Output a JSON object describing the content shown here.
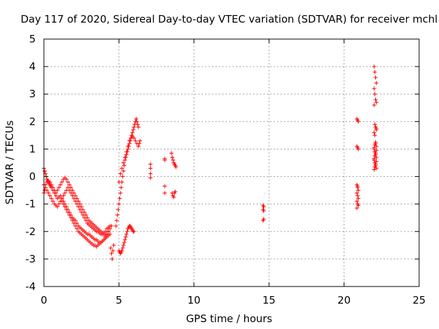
{
  "chart_data": {
    "type": "scatter",
    "title": "Day 117 of 2020, Sidereal Day-to-day VTEC variation (SDTVAR) for receiver mchl",
    "xlabel": "GPS time / hours",
    "ylabel": "SDTVAR / TECUs",
    "xlim": [
      0,
      25
    ],
    "ylim": [
      -4,
      5
    ],
    "xticks": [
      "0",
      "5",
      "10",
      "15",
      "20",
      "25"
    ],
    "yticks": [
      "-4",
      "-3",
      "-2",
      "-1",
      "0",
      "1",
      "2",
      "3",
      "4",
      "5"
    ],
    "grid": true,
    "marker": "plus",
    "color": "#ff0000",
    "series": [
      {
        "name": "SDTVAR",
        "x": [
          0.0,
          0.05,
          0.1,
          0.15,
          0.2,
          0.25,
          0.3,
          0.35,
          0.4,
          0.45,
          0.5,
          0.6,
          0.7,
          0.8,
          0.9,
          1.0,
          1.1,
          1.2,
          1.3,
          1.4,
          1.5,
          1.6,
          1.7,
          1.8,
          1.9,
          2.0,
          2.1,
          2.2,
          2.3,
          2.4,
          2.5,
          2.6,
          2.7,
          2.8,
          2.9,
          3.0,
          3.1,
          3.2,
          3.3,
          3.4,
          3.5,
          3.6,
          3.7,
          3.8,
          3.9,
          4.0,
          4.1,
          4.2,
          4.3,
          4.4,
          0.0,
          0.1,
          0.2,
          0.3,
          0.4,
          0.5,
          0.6,
          0.7,
          0.8,
          0.9,
          1.0,
          1.1,
          1.2,
          1.3,
          1.4,
          1.5,
          1.6,
          1.7,
          1.8,
          1.9,
          2.0,
          2.1,
          2.2,
          2.3,
          2.4,
          2.5,
          2.6,
          2.7,
          2.8,
          2.9,
          3.0,
          3.1,
          3.2,
          3.3,
          3.4,
          3.5,
          3.6,
          3.7,
          3.8,
          3.9,
          4.0,
          4.1,
          4.2,
          4.3,
          4.4,
          4.5,
          0.0,
          0.05,
          0.1,
          0.2,
          0.3,
          0.4,
          0.5,
          0.6,
          0.7,
          0.8,
          0.9,
          1.0,
          1.1,
          1.2,
          1.3,
          1.4,
          1.5,
          1.6,
          1.7,
          1.8,
          1.9,
          2.0,
          2.1,
          2.2,
          2.3,
          2.4,
          2.5,
          2.6,
          2.7,
          2.8,
          2.9,
          3.0,
          3.1,
          3.2,
          3.3,
          3.4,
          3.5,
          3.6,
          3.7,
          3.8,
          3.9,
          4.0,
          4.1,
          4.2,
          4.3,
          1.2,
          1.3,
          1.4,
          1.5,
          1.6,
          1.7,
          1.8,
          1.9,
          2.0,
          2.1,
          2.2,
          2.3,
          2.4,
          2.5,
          2.6,
          2.7,
          2.8,
          2.9,
          3.0,
          3.1,
          3.2,
          3.3,
          3.4,
          3.5,
          3.6,
          3.7,
          3.8,
          3.9,
          4.0,
          4.1,
          4.2,
          4.3,
          4.4,
          4.45,
          4.5,
          4.55,
          4.6,
          4.65,
          4.8,
          4.85,
          4.9,
          4.95,
          5.0,
          5.05,
          5.1,
          5.15,
          5.2,
          5.25,
          5.3,
          5.35,
          5.4,
          5.45,
          5.5,
          5.55,
          5.6,
          5.65,
          5.7,
          5.75,
          5.8,
          5.85,
          5.9,
          5.95,
          6.0,
          6.05,
          6.1,
          6.15,
          6.2,
          6.25,
          6.3,
          5.0,
          5.05,
          5.1,
          5.15,
          5.2,
          5.25,
          5.3,
          5.35,
          5.4,
          5.45,
          5.5,
          5.55,
          5.6,
          5.65,
          5.7,
          5.75,
          5.8,
          5.85,
          5.9,
          5.95,
          6.0,
          5.0,
          5.1,
          5.2,
          5.3,
          5.4,
          5.5,
          5.6,
          5.7,
          5.8,
          5.9,
          6.0,
          6.1,
          6.2,
          6.3,
          6.35,
          6.4,
          7.1,
          7.1,
          7.1,
          7.1,
          8.05,
          8.05,
          8.05,
          8.05,
          8.5,
          8.55,
          8.6,
          8.65,
          8.7,
          8.75,
          8.8,
          8.55,
          8.6,
          8.65,
          8.7,
          8.75,
          14.6,
          14.65,
          14.6,
          14.65,
          14.6,
          14.65,
          20.85,
          20.9,
          20.95,
          20.85,
          20.9,
          20.95,
          20.85,
          20.9,
          20.95,
          20.85,
          20.9,
          20.95,
          20.85,
          20.9,
          20.95,
          20.85,
          20.9,
          22.0,
          22.05,
          22.1,
          22.15,
          22.0,
          22.05,
          22.1,
          22.15,
          22.0,
          22.05,
          22.1,
          22.15,
          22.0,
          22.05,
          22.1,
          22.15,
          22.0,
          22.05,
          22.1,
          22.15,
          22.0,
          22.05,
          22.1,
          22.15,
          22.0,
          22.05,
          22.1,
          22.15,
          22.0,
          22.05,
          22.1,
          22.15,
          22.0,
          22.05,
          22.1,
          22.15
        ],
        "y": [
          0.3,
          0.2,
          0.1,
          0.0,
          -0.1,
          -0.15,
          -0.2,
          -0.25,
          -0.3,
          -0.35,
          -0.4,
          -0.5,
          -0.6,
          -0.7,
          -0.8,
          -0.75,
          -0.7,
          -0.8,
          -0.9,
          -1.0,
          -1.1,
          -1.2,
          -1.3,
          -1.4,
          -1.5,
          -1.55,
          -1.6,
          -1.7,
          -1.8,
          -1.85,
          -1.9,
          -1.95,
          -2.0,
          -2.05,
          -2.1,
          -2.1,
          -2.15,
          -2.2,
          -2.25,
          -2.3,
          -2.3,
          -2.35,
          -2.4,
          -2.4,
          -2.35,
          -2.3,
          -2.2,
          -2.1,
          -2.0,
          -1.9,
          -0.3,
          -0.4,
          -0.5,
          -0.6,
          -0.7,
          -0.8,
          -0.9,
          -1.0,
          -1.05,
          -1.1,
          -1.0,
          -0.9,
          -0.8,
          -0.7,
          -0.6,
          -0.5,
          -0.4,
          -0.5,
          -0.6,
          -0.7,
          -0.8,
          -0.9,
          -1.0,
          -1.1,
          -1.2,
          -1.3,
          -1.4,
          -1.5,
          -1.6,
          -1.7,
          -1.75,
          -1.8,
          -1.85,
          -1.9,
          -1.95,
          -2.0,
          -2.0,
          -2.05,
          -2.1,
          -2.1,
          -2.05,
          -2.0,
          -1.9,
          -1.85,
          -1.8,
          -1.8,
          -0.6,
          -0.5,
          -0.3,
          -0.2,
          -0.15,
          -0.2,
          -0.3,
          -0.4,
          -0.5,
          -0.6,
          -0.5,
          -0.4,
          -0.3,
          -0.2,
          -0.1,
          -0.05,
          -0.1,
          -0.2,
          -0.3,
          -0.4,
          -0.5,
          -0.6,
          -0.7,
          -0.8,
          -0.9,
          -1.0,
          -1.1,
          -1.2,
          -1.3,
          -1.4,
          -1.5,
          -1.6,
          -1.65,
          -1.7,
          -1.75,
          -1.8,
          -1.85,
          -1.9,
          -1.95,
          -2.0,
          -2.05,
          -2.1,
          -2.15,
          -2.1,
          -2.0,
          -0.9,
          -1.0,
          -1.1,
          -1.2,
          -1.3,
          -1.4,
          -1.5,
          -1.6,
          -1.7,
          -1.8,
          -1.9,
          -2.0,
          -2.05,
          -2.1,
          -2.15,
          -2.2,
          -2.25,
          -2.3,
          -2.35,
          -2.4,
          -2.45,
          -2.5,
          -2.5,
          -2.55,
          -2.5,
          -2.45,
          -2.4,
          -2.35,
          -2.3,
          -2.25,
          -2.2,
          -2.15,
          -2.1,
          -2.6,
          -2.8,
          -3.0,
          -2.7,
          -2.5,
          -1.8,
          -1.6,
          -1.4,
          -1.2,
          -1.0,
          -0.8,
          -0.6,
          -0.4,
          -0.2,
          0.0,
          0.2,
          0.4,
          0.6,
          0.7,
          0.8,
          0.9,
          1.0,
          1.1,
          1.2,
          1.3,
          1.4,
          1.5,
          1.6,
          1.7,
          1.8,
          1.9,
          2.0,
          2.1,
          2.0,
          1.9,
          1.8,
          -2.7,
          -2.75,
          -2.8,
          -2.75,
          -2.7,
          -2.6,
          -2.5,
          -2.4,
          -2.3,
          -2.2,
          -2.1,
          -2.0,
          -1.9,
          -1.85,
          -1.8,
          -1.8,
          -1.85,
          -1.9,
          -1.95,
          -2.0,
          -2.0,
          -0.2,
          0.1,
          0.3,
          0.5,
          0.7,
          0.9,
          1.1,
          1.3,
          1.4,
          1.45,
          1.4,
          1.3,
          1.2,
          1.1,
          1.2,
          1.3,
          0.45,
          0.3,
          0.1,
          -0.05,
          0.65,
          0.6,
          -0.35,
          -0.6,
          0.85,
          0.7,
          0.6,
          0.5,
          0.45,
          0.4,
          0.35,
          -0.6,
          -0.7,
          -0.75,
          -0.6,
          -0.55,
          -1.05,
          -1.1,
          -1.2,
          -1.25,
          -1.6,
          -1.55,
          2.1,
          2.05,
          2.0,
          1.1,
          1.05,
          1.0,
          -0.3,
          -0.4,
          -0.5,
          -0.6,
          -0.7,
          -0.8,
          -0.9,
          -1.0,
          -1.05,
          -1.15,
          -0.35,
          4.0,
          3.8,
          3.6,
          3.4,
          3.2,
          3.0,
          2.8,
          2.7,
          2.6,
          1.9,
          1.8,
          1.7,
          1.6,
          1.5,
          1.2,
          1.1,
          1.0,
          0.9,
          0.8,
          0.7,
          0.6,
          0.5,
          0.4,
          0.3,
          0.25,
          0.35,
          0.45,
          0.55,
          0.65,
          0.75,
          0.85,
          0.95,
          1.05,
          1.15,
          1.25,
          1.75
        ]
      }
    ]
  }
}
